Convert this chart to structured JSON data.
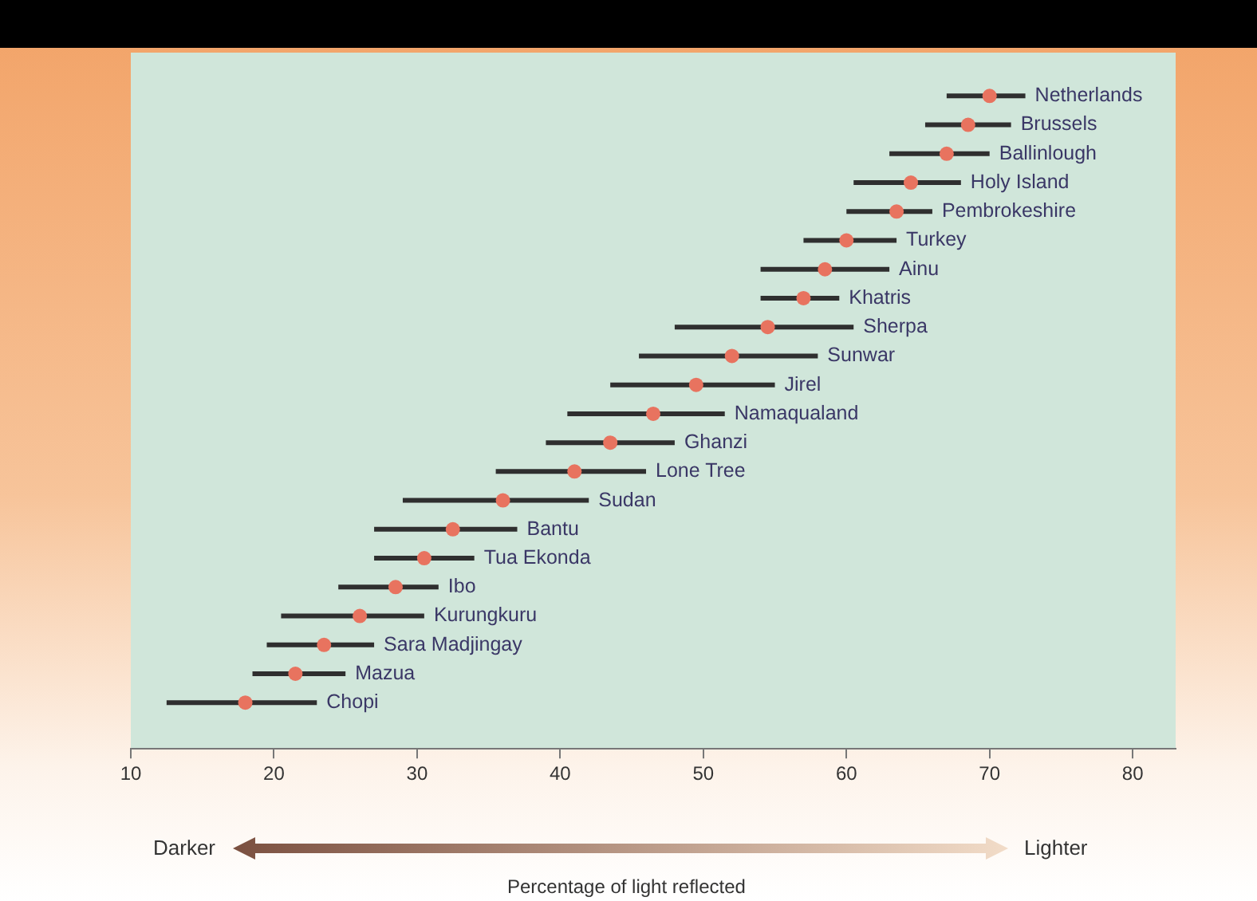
{
  "chart_data": {
    "type": "scatter",
    "orientation": "horizontal",
    "xlabel": "Percentage of light reflected",
    "categories": [
      "Netherlands",
      "Brussels",
      "Ballinlough",
      "Holy Island",
      "Pembrokeshire",
      "Turkey",
      "Ainu",
      "Khatris",
      "Sherpa",
      "Sunwar",
      "Jirel",
      "Namaqualand",
      "Ghanzi",
      "Lone Tree",
      "Sudan",
      "Bantu",
      "Tua Ekonda",
      "Ibo",
      "Kurungkuru",
      "Sara Madjingay",
      "Mazua",
      "Chopi"
    ],
    "series": [
      {
        "color": "#e8735f",
        "values": [
          70,
          68.5,
          67,
          64.5,
          63.5,
          60,
          58.5,
          57,
          54.5,
          52,
          49.5,
          46.5,
          43.5,
          41,
          36,
          32.5,
          30.5,
          28.5,
          26,
          23.5,
          21.5,
          18
        ],
        "errors": [
          [
            67,
            72.5
          ],
          [
            65.5,
            71.5
          ],
          [
            63,
            70
          ],
          [
            60.5,
            68
          ],
          [
            60,
            66
          ],
          [
            57,
            63.5
          ],
          [
            54,
            63
          ],
          [
            54,
            59.5
          ],
          [
            48,
            60.5
          ],
          [
            45.5,
            58
          ],
          [
            43.5,
            55
          ],
          [
            40.5,
            51.5
          ],
          [
            39,
            48
          ],
          [
            35.5,
            46
          ],
          [
            29,
            42
          ],
          [
            27,
            37
          ],
          [
            27,
            34
          ],
          [
            24.5,
            31.5
          ],
          [
            20.5,
            30.5
          ],
          [
            19.5,
            27
          ],
          [
            18.5,
            25
          ],
          [
            12.5,
            23
          ]
        ]
      }
    ],
    "xlim": [
      10,
      83
    ],
    "xticks": [
      10,
      20,
      30,
      40,
      50,
      60,
      70,
      80
    ],
    "tick_labels": "x",
    "marker": "circle",
    "annotations": [
      "Darker",
      "Lighter"
    ]
  }
}
